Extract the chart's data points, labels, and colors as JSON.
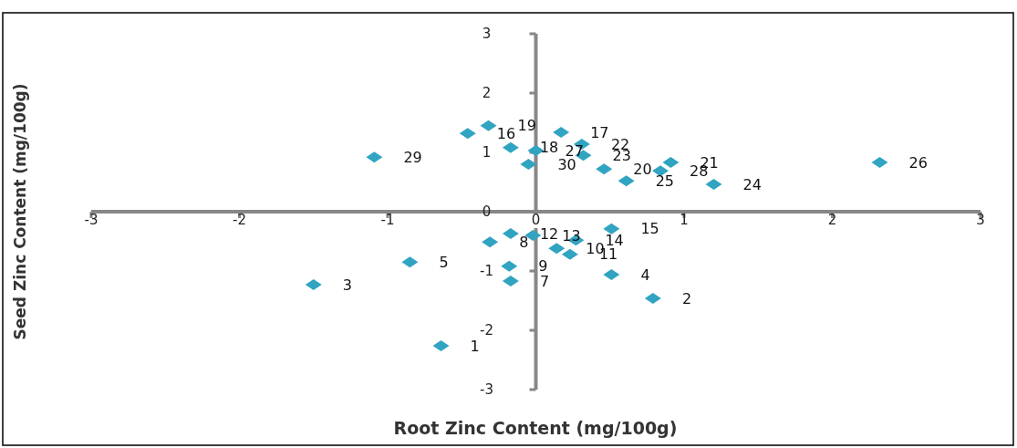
{
  "chart_data": {
    "type": "scatter",
    "xlabel": "Root Zinc Content (mg/100g)",
    "ylabel": "Seed Zinc Content (mg/100g)",
    "xlim": [
      -3,
      3
    ],
    "ylim": [
      -3,
      3
    ],
    "xticks": [
      -3,
      -2,
      -1,
      0,
      1,
      2,
      3
    ],
    "yticks": [
      -3,
      -2,
      -1,
      0,
      1,
      2,
      3
    ],
    "marker": "diamond",
    "series": [
      {
        "color": "#31a4c2",
        "x": [
          -0.64,
          0.79,
          -1.5,
          0.51,
          -0.85,
          -0.17,
          -0.31,
          -0.18,
          0.14,
          0.23,
          -0.17,
          -0.02,
          0.27,
          0.51,
          -0.46,
          0.17,
          -0.17,
          -0.32,
          0.46,
          0.91,
          0.31,
          0.32,
          1.2,
          0.61,
          2.32,
          0.0,
          0.84,
          -1.09,
          -0.05
        ],
        "values": [
          -2.26,
          -1.46,
          -1.23,
          -1.06,
          -0.85,
          -1.17,
          -0.51,
          -0.92,
          -0.62,
          -0.72,
          -0.37,
          -0.4,
          -0.48,
          -0.29,
          1.32,
          1.34,
          1.08,
          1.45,
          0.72,
          0.83,
          1.14,
          0.95,
          0.46,
          0.52,
          0.83,
          1.03,
          0.69,
          0.92,
          0.8
        ]
      }
    ],
    "annotations": [
      {
        "text": "1",
        "x": -0.64,
        "y": -2.26
      },
      {
        "text": "2",
        "x": 0.79,
        "y": -1.46
      },
      {
        "text": "3",
        "x": -1.5,
        "y": -1.23
      },
      {
        "text": "4",
        "x": 0.51,
        "y": -1.06
      },
      {
        "text": "5",
        "x": -0.85,
        "y": -0.85
      },
      {
        "text": "7",
        "x": -0.17,
        "y": -1.17
      },
      {
        "text": "8",
        "x": -0.31,
        "y": -0.51
      },
      {
        "text": "9",
        "x": -0.18,
        "y": -0.92
      },
      {
        "text": "10",
        "x": 0.14,
        "y": -0.62
      },
      {
        "text": "11",
        "x": 0.23,
        "y": -0.72
      },
      {
        "text": "12",
        "x": -0.17,
        "y": -0.37
      },
      {
        "text": "13",
        "x": -0.02,
        "y": -0.4
      },
      {
        "text": "14",
        "x": 0.27,
        "y": -0.48
      },
      {
        "text": "15",
        "x": 0.51,
        "y": -0.29
      },
      {
        "text": "16",
        "x": -0.46,
        "y": 1.32
      },
      {
        "text": "17",
        "x": 0.17,
        "y": 1.34
      },
      {
        "text": "18",
        "x": -0.17,
        "y": 1.08
      },
      {
        "text": "19",
        "x": -0.32,
        "y": 1.45
      },
      {
        "text": "20",
        "x": 0.46,
        "y": 0.72
      },
      {
        "text": "21",
        "x": 0.91,
        "y": 0.83
      },
      {
        "text": "22",
        "x": 0.31,
        "y": 1.14
      },
      {
        "text": "23",
        "x": 0.32,
        "y": 0.95
      },
      {
        "text": "24",
        "x": 1.2,
        "y": 0.46
      },
      {
        "text": "25",
        "x": 0.61,
        "y": 0.52
      },
      {
        "text": "26",
        "x": 2.32,
        "y": 0.83
      },
      {
        "text": "27",
        "x": 0.0,
        "y": 1.03
      },
      {
        "text": "28",
        "x": 0.84,
        "y": 0.69
      },
      {
        "text": "29",
        "x": -1.09,
        "y": 0.92
      },
      {
        "text": "30",
        "x": -0.05,
        "y": 0.8
      }
    ]
  }
}
